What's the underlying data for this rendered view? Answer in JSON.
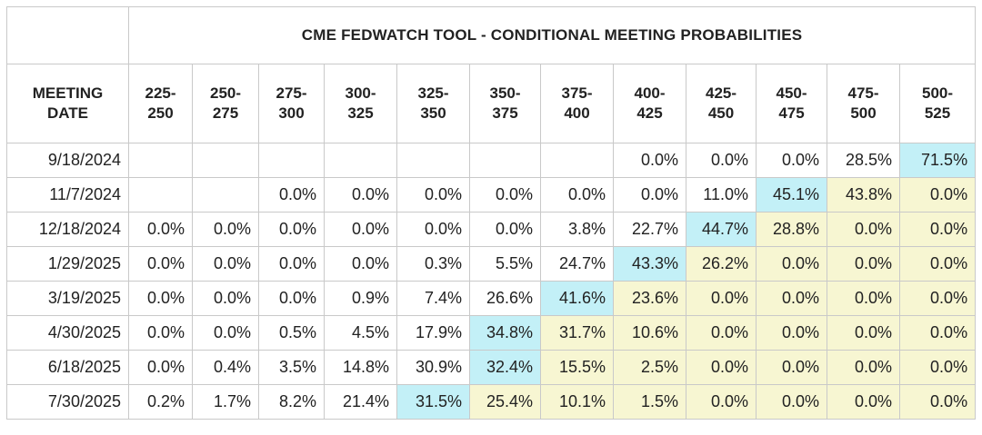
{
  "title": "CME FEDWATCH TOOL - CONDITIONAL MEETING PROBABILITIES",
  "header": {
    "meeting_date": [
      "MEETING",
      "DATE"
    ],
    "ranges": [
      [
        "225-",
        "250"
      ],
      [
        "250-",
        "275"
      ],
      [
        "275-",
        "300"
      ],
      [
        "300-",
        "325"
      ],
      [
        "325-",
        "350"
      ],
      [
        "350-",
        "375"
      ],
      [
        "375-",
        "400"
      ],
      [
        "400-",
        "425"
      ],
      [
        "425-",
        "450"
      ],
      [
        "450-",
        "475"
      ],
      [
        "475-",
        "500"
      ],
      [
        "500-",
        "525"
      ]
    ]
  },
  "colors": {
    "highlight": "#c3f0f7",
    "above": "#f7f6d2",
    "border": "#c9c9c9"
  },
  "rows": [
    {
      "date": "9/18/2024",
      "values": [
        "",
        "",
        "",
        "",
        "",
        "",
        "",
        "0.0%",
        "0.0%",
        "0.0%",
        "28.5%",
        "71.5%"
      ],
      "highlight": 11
    },
    {
      "date": "11/7/2024",
      "values": [
        "",
        "",
        "0.0%",
        "0.0%",
        "0.0%",
        "0.0%",
        "0.0%",
        "0.0%",
        "11.0%",
        "45.1%",
        "43.8%",
        "0.0%"
      ],
      "highlight": 9
    },
    {
      "date": "12/18/2024",
      "values": [
        "0.0%",
        "0.0%",
        "0.0%",
        "0.0%",
        "0.0%",
        "0.0%",
        "3.8%",
        "22.7%",
        "44.7%",
        "28.8%",
        "0.0%",
        "0.0%"
      ],
      "highlight": 8
    },
    {
      "date": "1/29/2025",
      "values": [
        "0.0%",
        "0.0%",
        "0.0%",
        "0.0%",
        "0.3%",
        "5.5%",
        "24.7%",
        "43.3%",
        "26.2%",
        "0.0%",
        "0.0%",
        "0.0%"
      ],
      "highlight": 7
    },
    {
      "date": "3/19/2025",
      "values": [
        "0.0%",
        "0.0%",
        "0.0%",
        "0.9%",
        "7.4%",
        "26.6%",
        "41.6%",
        "23.6%",
        "0.0%",
        "0.0%",
        "0.0%",
        "0.0%"
      ],
      "highlight": 6
    },
    {
      "date": "4/30/2025",
      "values": [
        "0.0%",
        "0.0%",
        "0.5%",
        "4.5%",
        "17.9%",
        "34.8%",
        "31.7%",
        "10.6%",
        "0.0%",
        "0.0%",
        "0.0%",
        "0.0%"
      ],
      "highlight": 5
    },
    {
      "date": "6/18/2025",
      "values": [
        "0.0%",
        "0.4%",
        "3.5%",
        "14.8%",
        "30.9%",
        "32.4%",
        "15.5%",
        "2.5%",
        "0.0%",
        "0.0%",
        "0.0%",
        "0.0%"
      ],
      "highlight": 5
    },
    {
      "date": "7/30/2025",
      "values": [
        "0.2%",
        "1.7%",
        "8.2%",
        "21.4%",
        "31.5%",
        "25.4%",
        "10.1%",
        "1.5%",
        "0.0%",
        "0.0%",
        "0.0%",
        "0.0%"
      ],
      "highlight": 4
    }
  ]
}
